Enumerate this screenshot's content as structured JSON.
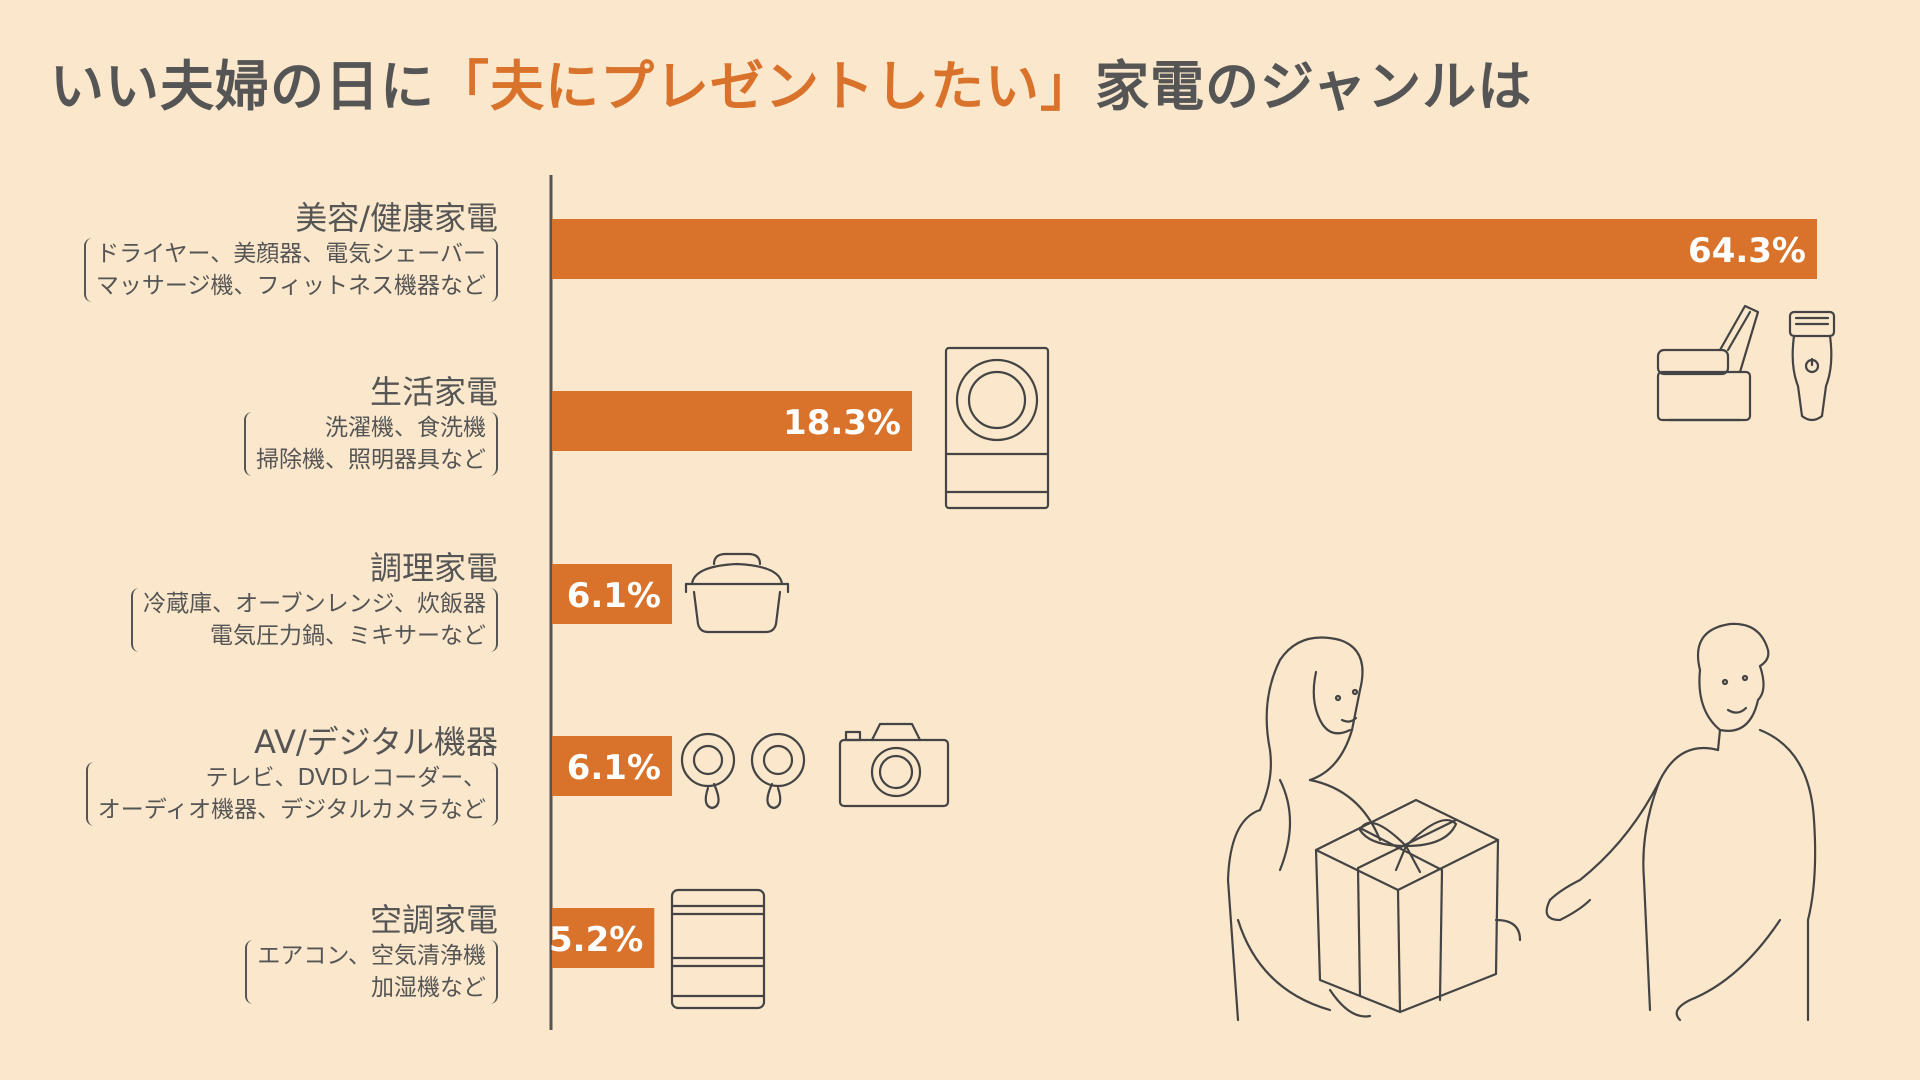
{
  "title": {
    "prefix": "いい夫婦の日に",
    "highlight": "「夫にプレゼントしたい」",
    "suffix": "家電のジャンルは"
  },
  "colors": {
    "background": "#fbe8cc",
    "bar": "#d9732c",
    "text": "#555555"
  },
  "chart_data": {
    "type": "bar",
    "orientation": "horizontal",
    "categories": [
      "美容/健康家電",
      "生活家電",
      "調理家電",
      "AV/デジタル機器",
      "空調家電"
    ],
    "category_notes": [
      [
        "ドライヤー、美顔器、電気シェーバー",
        "マッサージ機、フィットネス機器など"
      ],
      [
        "洗濯機、食洗機",
        "掃除機、照明器具など"
      ],
      [
        "冷蔵庫、オーブンレンジ、炊飯器",
        "電気圧力鍋、ミキサーなど"
      ],
      [
        "テレビ、DVDレコーダー、",
        "オーディオ機器、デジタルカメラなど"
      ],
      [
        "エアコン、空気清浄機",
        "加湿機など"
      ]
    ],
    "values": [
      64.3,
      18.3,
      6.1,
      6.1,
      5.2
    ],
    "value_labels": [
      "64.3%",
      "18.3%",
      "6.1%",
      "6.1%",
      "5.2%"
    ],
    "unit": "%"
  },
  "icons": [
    "massage-chair-icon",
    "shaver-icon",
    "washing-machine-icon",
    "pressure-cooker-icon",
    "earbuds-icon",
    "camera-icon",
    "air-purifier-icon",
    "couple-gift-illustration"
  ]
}
